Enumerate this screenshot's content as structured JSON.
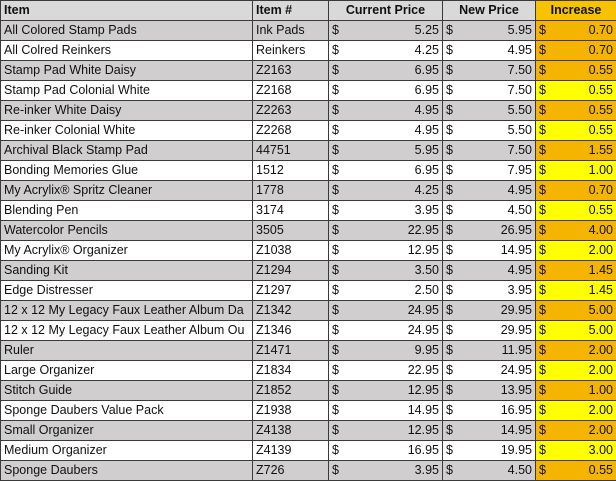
{
  "headers": {
    "item": "Item",
    "item_num": "Item #",
    "current_price": "Current Price",
    "new_price": "New Price",
    "increase": "Increase"
  },
  "currency_symbol": "$",
  "colors": {
    "row_shade": "#d0cece",
    "header_bg": "#d9d9d9",
    "increase_yellow": "#ffff00",
    "increase_orange": "#f4b400"
  },
  "rows": [
    {
      "item": "All Colored Stamp Pads",
      "num": "Ink Pads",
      "cur": "5.25",
      "new": "5.95",
      "inc": "0.70",
      "hot": true
    },
    {
      "item": "All Colred Reinkers",
      "num": "Reinkers",
      "cur": "4.25",
      "new": "4.95",
      "inc": "0.70",
      "hot": true
    },
    {
      "item": "Stamp Pad White Daisy",
      "num": "Z2163",
      "cur": "6.95",
      "new": "7.50",
      "inc": "0.55",
      "hot": true
    },
    {
      "item": "Stamp Pad Colonial White",
      "num": "Z2168",
      "cur": "6.95",
      "new": "7.50",
      "inc": "0.55",
      "hot": false
    },
    {
      "item": "Re-inker White Daisy",
      "num": "Z2263",
      "cur": "4.95",
      "new": "5.50",
      "inc": "0.55",
      "hot": true
    },
    {
      "item": "Re-inker Colonial White",
      "num": "Z2268",
      "cur": "4.95",
      "new": "5.50",
      "inc": "0.55",
      "hot": false
    },
    {
      "item": "Archival Black Stamp Pad",
      "num": "44751",
      "cur": "5.95",
      "new": "7.50",
      "inc": "1.55",
      "hot": true
    },
    {
      "item": "Bonding Memories Glue",
      "num": "1512",
      "cur": "6.95",
      "new": "7.95",
      "inc": "1.00",
      "hot": false
    },
    {
      "item": "My Acrylix® Spritz Cleaner",
      "num": "1778",
      "cur": "4.25",
      "new": "4.95",
      "inc": "0.70",
      "hot": true
    },
    {
      "item": "Blending Pen",
      "num": "3174",
      "cur": "3.95",
      "new": "4.50",
      "inc": "0.55",
      "hot": false
    },
    {
      "item": "Watercolor Pencils",
      "num": "3505",
      "cur": "22.95",
      "new": "26.95",
      "inc": "4.00",
      "hot": true
    },
    {
      "item": "My Acrylix® Organizer",
      "num": "Z1038",
      "cur": "12.95",
      "new": "14.95",
      "inc": "2.00",
      "hot": false
    },
    {
      "item": "Sanding Kit",
      "num": "Z1294",
      "cur": "3.50",
      "new": "4.95",
      "inc": "1.45",
      "hot": true
    },
    {
      "item": "Edge Distresser",
      "num": "Z1297",
      "cur": "2.50",
      "new": "3.95",
      "inc": "1.45",
      "hot": false
    },
    {
      "item": "12 x 12 My Legacy Faux Leather Album Da",
      "num": "Z1342",
      "cur": "24.95",
      "new": "29.95",
      "inc": "5.00",
      "hot": true
    },
    {
      "item": "12 x 12 My Legacy Faux Leather Album Ou",
      "num": "Z1346",
      "cur": "24.95",
      "new": "29.95",
      "inc": "5.00",
      "hot": false
    },
    {
      "item": "Ruler",
      "num": "Z1471",
      "cur": "9.95",
      "new": "11.95",
      "inc": "2.00",
      "hot": true
    },
    {
      "item": "Large Organizer",
      "num": "Z1834",
      "cur": "22.95",
      "new": "24.95",
      "inc": "2.00",
      "hot": false
    },
    {
      "item": "Stitch Guide",
      "num": "Z1852",
      "cur": "12.95",
      "new": "13.95",
      "inc": "1.00",
      "hot": true
    },
    {
      "item": "Sponge Daubers Value Pack",
      "num": "Z1938",
      "cur": "14.95",
      "new": "16.95",
      "inc": "2.00",
      "hot": false
    },
    {
      "item": "Small Organizer",
      "num": "Z4138",
      "cur": "12.95",
      "new": "14.95",
      "inc": "2.00",
      "hot": true
    },
    {
      "item": "Medium Organizer",
      "num": "Z4139",
      "cur": "16.95",
      "new": "19.95",
      "inc": "3.00",
      "hot": false
    },
    {
      "item": "Sponge Daubers",
      "num": "Z726",
      "cur": "3.95",
      "new": "4.50",
      "inc": "0.55",
      "hot": true
    }
  ]
}
